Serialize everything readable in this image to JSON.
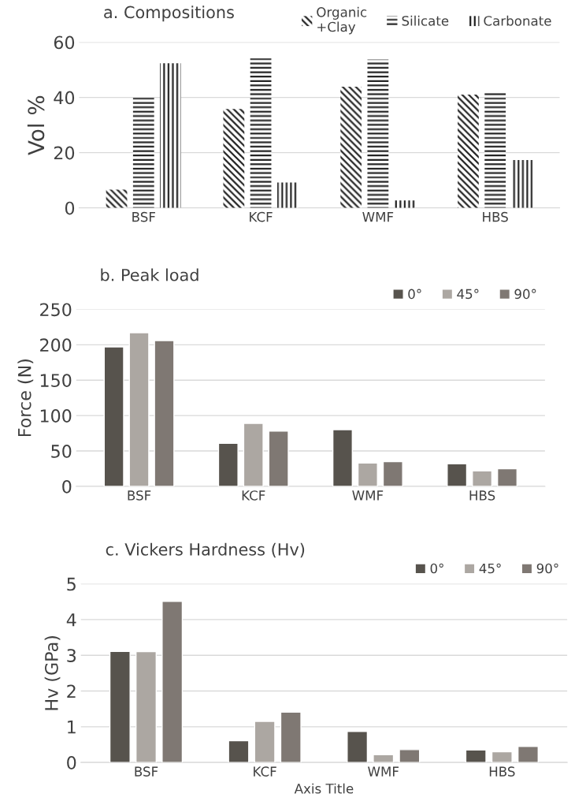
{
  "chart_data": [
    {
      "type": "bar",
      "title": "a. Compositions",
      "ylabel": "Vol %",
      "categories": [
        "BSF",
        "KCF",
        "WMF",
        "HBS"
      ],
      "series": [
        {
          "name": "Organic\n+Clay",
          "color": "#222222",
          "values": [
            6.6,
            35.8,
            43.9,
            41.0
          ]
        },
        {
          "name": "Silicate",
          "color": "#222222",
          "values": [
            40.4,
            54.2,
            53.7,
            41.7
          ]
        },
        {
          "name": "Carbonate",
          "color": "#222222",
          "values": [
            52.4,
            9.2,
            2.7,
            17.3
          ]
        }
      ],
      "ylim": [
        0,
        60
      ],
      "yticks": [
        0,
        20,
        40,
        60
      ],
      "grid": "y",
      "legend": "top right"
    },
    {
      "type": "bar",
      "title": "b. Peak load",
      "ylabel": "Force (N)",
      "categories": [
        "BSF",
        "KCF",
        "WMF",
        "HBS"
      ],
      "series": [
        {
          "name": "0°",
          "color": "#57534d",
          "values": [
            197,
            61,
            80,
            32
          ]
        },
        {
          "name": "45°",
          "color": "#aca7a2",
          "values": [
            217,
            89,
            33,
            22
          ]
        },
        {
          "name": "90°",
          "color": "#7f7873",
          "values": [
            206,
            78,
            35,
            25
          ]
        }
      ],
      "ylim": [
        0,
        250
      ],
      "yticks": [
        0,
        50,
        100,
        150,
        200,
        250
      ],
      "grid": "y",
      "legend": "top right"
    },
    {
      "type": "bar",
      "title": "c. Vickers Hardness (Hv)",
      "xlabel": "Axis Title",
      "ylabel": "Hv (GPa)",
      "categories": [
        "BSF",
        "KCF",
        "WMF",
        "HBS"
      ],
      "series": [
        {
          "name": "0°",
          "color": "#57534d",
          "values": [
            3.11,
            0.61,
            0.87,
            0.35
          ]
        },
        {
          "name": "45°",
          "color": "#aca7a2",
          "values": [
            3.1,
            1.15,
            0.22,
            0.3
          ]
        },
        {
          "name": "90°",
          "color": "#7f7873",
          "values": [
            4.51,
            1.41,
            0.36,
            0.45
          ]
        }
      ],
      "ylim": [
        0,
        5
      ],
      "yticks": [
        0,
        1,
        2,
        3,
        4,
        5
      ],
      "grid": "y",
      "legend": "top right"
    }
  ]
}
